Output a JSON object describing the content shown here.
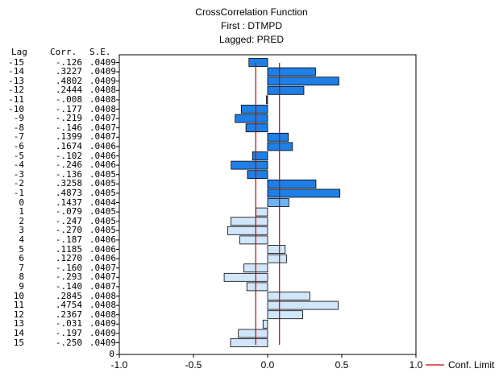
{
  "title": {
    "line1": "CrossCorrelation Function",
    "line2": "First : DTMPD",
    "line3": "Lagged: PRED"
  },
  "table_headers": {
    "lag": "Lag",
    "corr": "Corr.",
    "se": "S.E."
  },
  "legend": {
    "conf_limit": "Conf. Limit"
  },
  "chart_data": {
    "type": "bar",
    "orientation": "horizontal",
    "title": "CrossCorrelation Function",
    "subtitle": [
      "First : DTMPD",
      "Lagged: PRED"
    ],
    "xlim": [
      -1.0,
      1.0
    ],
    "ylim": [
      -15,
      15
    ],
    "x_ticks": [
      "-1.0",
      "-0.5",
      "0.0",
      "0.5",
      "1.0"
    ],
    "y_axis_extra_tick": "0",
    "conf_limit": 0.08,
    "conf_limit_color": "#cc0000",
    "legend": [
      "Conf. Limit"
    ],
    "legend_placement": "bottom-right",
    "bar_colors": {
      "negative_lags": "#1e7fe6",
      "lag_zero": "#6ab4f6",
      "positive_lags": "#cfe6fb"
    },
    "rows": [
      {
        "lag": "-15",
        "corr": "-.126",
        "se": ".0409",
        "value": -0.126
      },
      {
        "lag": "-14",
        "corr": ".3227",
        "se": ".0409",
        "value": 0.3227
      },
      {
        "lag": "-13",
        "corr": ".4802",
        "se": ".0409",
        "value": 0.4802
      },
      {
        "lag": "-12",
        "corr": ".2444",
        "se": ".0408",
        "value": 0.2444
      },
      {
        "lag": "-11",
        "corr": "-.008",
        "se": ".0408",
        "value": -0.008
      },
      {
        "lag": "-10",
        "corr": "-.177",
        "se": ".0408",
        "value": -0.177
      },
      {
        "lag": "-9",
        "corr": "-.219",
        "se": ".0407",
        "value": -0.219
      },
      {
        "lag": "-8",
        "corr": "-.146",
        "se": ".0407",
        "value": -0.146
      },
      {
        "lag": "-7",
        "corr": ".1399",
        "se": ".0407",
        "value": 0.1399
      },
      {
        "lag": "-6",
        "corr": ".1674",
        "se": ".0406",
        "value": 0.1674
      },
      {
        "lag": "-5",
        "corr": "-.102",
        "se": ".0406",
        "value": -0.102
      },
      {
        "lag": "-4",
        "corr": "-.246",
        "se": ".0406",
        "value": -0.246
      },
      {
        "lag": "-3",
        "corr": "-.136",
        "se": ".0405",
        "value": -0.136
      },
      {
        "lag": "-2",
        "corr": ".3258",
        "se": ".0405",
        "value": 0.3258
      },
      {
        "lag": "-1",
        "corr": ".4873",
        "se": ".0405",
        "value": 0.4873
      },
      {
        "lag": "0",
        "corr": ".1437",
        "se": ".0404",
        "value": 0.1437
      },
      {
        "lag": "1",
        "corr": "-.079",
        "se": ".0405",
        "value": -0.079
      },
      {
        "lag": "2",
        "corr": "-.247",
        "se": ".0405",
        "value": -0.247
      },
      {
        "lag": "3",
        "corr": "-.270",
        "se": ".0405",
        "value": -0.27
      },
      {
        "lag": "4",
        "corr": "-.187",
        "se": ".0406",
        "value": -0.187
      },
      {
        "lag": "5",
        "corr": ".1185",
        "se": ".0406",
        "value": 0.1185
      },
      {
        "lag": "6",
        "corr": ".1270",
        "se": ".0406",
        "value": 0.127
      },
      {
        "lag": "7",
        "corr": "-.160",
        "se": ".0407",
        "value": -0.16
      },
      {
        "lag": "8",
        "corr": "-.293",
        "se": ".0407",
        "value": -0.293
      },
      {
        "lag": "9",
        "corr": "-.140",
        "se": ".0407",
        "value": -0.14
      },
      {
        "lag": "10",
        "corr": ".2845",
        "se": ".0408",
        "value": 0.2845
      },
      {
        "lag": "11",
        "corr": ".4754",
        "se": ".0408",
        "value": 0.4754
      },
      {
        "lag": "12",
        "corr": ".2367",
        "se": ".0408",
        "value": 0.2367
      },
      {
        "lag": "13",
        "corr": "-.031",
        "se": ".0409",
        "value": -0.031
      },
      {
        "lag": "14",
        "corr": "-.197",
        "se": ".0409",
        "value": -0.197
      },
      {
        "lag": "15",
        "corr": "-.250",
        "se": ".0409",
        "value": -0.25
      }
    ]
  }
}
